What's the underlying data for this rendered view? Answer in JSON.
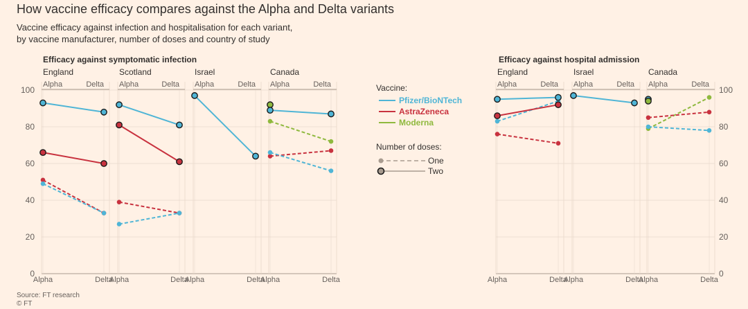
{
  "title": "How vaccine efficacy compares against the Alpha and Delta variants",
  "subtitle_lines": [
    "Vaccine efficacy against infection and hospitalisation for each variant,",
    "by vaccine manufacturer, number of doses and country of study"
  ],
  "source": "Source: FT research",
  "copyright": "© FT",
  "legend": {
    "vaccine_title": "Vaccine:",
    "vaccines": [
      {
        "name": "Pfizer/BioNTech",
        "color": "#4fb5d6"
      },
      {
        "name": "AstraZeneca",
        "color": "#c8323f"
      },
      {
        "name": "Moderna",
        "color": "#8fb93e"
      }
    ],
    "doses_title": "Number of doses:",
    "doses": [
      {
        "name": "One",
        "style": "dashed"
      },
      {
        "name": "Two",
        "style": "solid"
      }
    ]
  },
  "colors": {
    "pfizer": "#4fb5d6",
    "astrazeneca": "#c8323f",
    "moderna": "#8fb93e",
    "background": "#fff1e5",
    "grid": "#e9d9cb",
    "axis": "#a99c90",
    "text": "#33302e",
    "muted": "#66605c"
  },
  "chart_data": [
    {
      "type": "line",
      "title": "Efficacy against symptomatic infection",
      "y_axis_side": "left",
      "ylim": [
        0,
        100
      ],
      "yticks": [
        0,
        20,
        40,
        60,
        80,
        100
      ],
      "x": [
        "Alpha",
        "Delta"
      ],
      "panels": [
        {
          "name": "England",
          "series": [
            {
              "vaccine": "pfizer",
              "doses": "Two",
              "values": [
                93,
                88
              ]
            },
            {
              "vaccine": "astrazeneca",
              "doses": "Two",
              "values": [
                66,
                60
              ]
            },
            {
              "vaccine": "astrazeneca",
              "doses": "One",
              "values": [
                51,
                33
              ]
            },
            {
              "vaccine": "pfizer",
              "doses": "One",
              "values": [
                49,
                33
              ]
            }
          ]
        },
        {
          "name": "Scotland",
          "series": [
            {
              "vaccine": "pfizer",
              "doses": "Two",
              "values": [
                92,
                81
              ]
            },
            {
              "vaccine": "astrazeneca",
              "doses": "Two",
              "values": [
                81,
                61
              ]
            },
            {
              "vaccine": "astrazeneca",
              "doses": "One",
              "values": [
                39,
                33
              ]
            },
            {
              "vaccine": "pfizer",
              "doses": "One",
              "values": [
                27,
                33
              ]
            }
          ]
        },
        {
          "name": "Israel",
          "series": [
            {
              "vaccine": "pfizer",
              "doses": "Two",
              "values": [
                97,
                64
              ]
            }
          ]
        },
        {
          "name": "Canada",
          "series": [
            {
              "vaccine": "moderna",
              "doses": "Two",
              "values": [
                92,
                null
              ]
            },
            {
              "vaccine": "pfizer",
              "doses": "Two",
              "values": [
                89,
                87
              ]
            },
            {
              "vaccine": "moderna",
              "doses": "One",
              "values": [
                83,
                72
              ]
            },
            {
              "vaccine": "astrazeneca",
              "doses": "One",
              "values": [
                64,
                67
              ]
            },
            {
              "vaccine": "pfizer",
              "doses": "One",
              "values": [
                66,
                56
              ]
            }
          ]
        }
      ]
    },
    {
      "type": "line",
      "title": "Efficacy against hospital admission",
      "y_axis_side": "right",
      "ylim": [
        0,
        100
      ],
      "yticks": [
        0,
        20,
        40,
        60,
        80,
        100
      ],
      "x": [
        "Alpha",
        "Delta"
      ],
      "panels": [
        {
          "name": "England",
          "series": [
            {
              "vaccine": "pfizer",
              "doses": "Two",
              "values": [
                95,
                96
              ]
            },
            {
              "vaccine": "astrazeneca",
              "doses": "Two",
              "values": [
                86,
                92
              ]
            },
            {
              "vaccine": "pfizer",
              "doses": "One",
              "values": [
                83,
                94
              ]
            },
            {
              "vaccine": "astrazeneca",
              "doses": "One",
              "values": [
                76,
                71
              ]
            }
          ]
        },
        {
          "name": "Israel",
          "series": [
            {
              "vaccine": "pfizer",
              "doses": "Two",
              "values": [
                97,
                93
              ]
            }
          ]
        },
        {
          "name": "Canada",
          "series": [
            {
              "vaccine": "pfizer",
              "doses": "Two",
              "values": [
                95,
                null
              ]
            },
            {
              "vaccine": "moderna",
              "doses": "Two",
              "values": [
                94,
                null
              ]
            },
            {
              "vaccine": "moderna",
              "doses": "One",
              "values": [
                79,
                96
              ]
            },
            {
              "vaccine": "astrazeneca",
              "doses": "One",
              "values": [
                85,
                88
              ]
            },
            {
              "vaccine": "pfizer",
              "doses": "One",
              "values": [
                80,
                78
              ]
            }
          ]
        }
      ]
    }
  ]
}
